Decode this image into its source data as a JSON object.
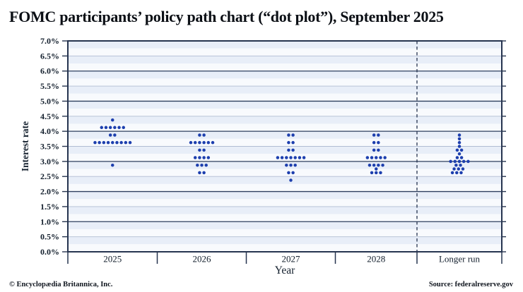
{
  "title": "FOMC participants’ policy path chart (“dot plot”), September 2025",
  "footer": {
    "left": "© Encyclopædia Britannica, Inc.",
    "right": "Source: federalreserve.gov"
  },
  "colors": {
    "dot": "#1d3fae",
    "frame": "#26344f",
    "grid_major": "#2e3f5e",
    "grid_minor": "#b0bcd2",
    "band_blue": "#e8eef8",
    "band_white": "#f8fafd",
    "text": "#14202e"
  },
  "chart_data": {
    "type": "scatter",
    "title": "FOMC participants’ policy path chart (“dot plot”), September 2025",
    "xlabel": "Year",
    "ylabel": "Interest rate",
    "unit": "percent",
    "ylim": [
      0.0,
      7.0
    ],
    "ytick_step": 0.5,
    "ytick_labels": [
      "7.0%",
      "6.5%",
      "6.0%",
      "5.5%",
      "5.0%",
      "4.5%",
      "4.0%",
      "3.5%",
      "3.0%",
      "2.5%",
      "2.0%",
      "1.5%",
      "1.0%",
      "0.5%",
      "0.0%"
    ],
    "categories": [
      "2025",
      "2026",
      "2027",
      "2028",
      "Longer run"
    ],
    "grid": true,
    "legend": "none",
    "longer_run_divider": "dashed vertical line before Longer run column",
    "columns": [
      {
        "label": "2025",
        "dots": [
          {
            "rate": 4.375,
            "count": 1
          },
          {
            "rate": 4.125,
            "count": 6
          },
          {
            "rate": 3.875,
            "count": 2
          },
          {
            "rate": 3.625,
            "count": 9
          },
          {
            "rate": 2.875,
            "count": 1
          }
        ]
      },
      {
        "label": "2026",
        "dots": [
          {
            "rate": 3.875,
            "count": 2
          },
          {
            "rate": 3.625,
            "count": 6
          },
          {
            "rate": 3.375,
            "count": 2
          },
          {
            "rate": 3.125,
            "count": 4
          },
          {
            "rate": 2.875,
            "count": 3
          },
          {
            "rate": 2.625,
            "count": 2
          }
        ]
      },
      {
        "label": "2027",
        "dots": [
          {
            "rate": 3.875,
            "count": 2
          },
          {
            "rate": 3.625,
            "count": 2
          },
          {
            "rate": 3.375,
            "count": 2
          },
          {
            "rate": 3.125,
            "count": 7
          },
          {
            "rate": 2.875,
            "count": 3
          },
          {
            "rate": 2.625,
            "count": 2
          },
          {
            "rate": 2.375,
            "count": 1
          }
        ]
      },
      {
        "label": "2028",
        "dots": [
          {
            "rate": 3.875,
            "count": 2
          },
          {
            "rate": 3.625,
            "count": 2
          },
          {
            "rate": 3.375,
            "count": 2
          },
          {
            "rate": 3.125,
            "count": 5
          },
          {
            "rate": 2.875,
            "count": 4
          },
          {
            "rate": 2.75,
            "count": 1
          },
          {
            "rate": 2.625,
            "count": 3
          }
        ]
      },
      {
        "label": "Longer run",
        "swarm": true,
        "dots": [
          {
            "rate": 3.875,
            "offsets": [
              0
            ]
          },
          {
            "rate": 3.75,
            "offsets": [
              0
            ]
          },
          {
            "rate": 3.625,
            "offsets": [
              0
            ]
          },
          {
            "rate": 3.5,
            "offsets": [
              0
            ]
          },
          {
            "rate": 3.375,
            "offsets": [
              -0.5,
              0.5
            ]
          },
          {
            "rate": 3.25,
            "offsets": [
              0
            ]
          },
          {
            "rate": 3.125,
            "offsets": [
              -0.5,
              0.5
            ]
          },
          {
            "rate": 3.0,
            "offsets": [
              -2,
              -1,
              0,
              1,
              2
            ]
          },
          {
            "rate": 2.875,
            "offsets": [
              -0.75,
              0.25
            ]
          },
          {
            "rate": 2.75,
            "offsets": [
              -1.2,
              -0.2,
              0.8
            ]
          },
          {
            "rate": 2.625,
            "offsets": [
              -1.6,
              -0.6,
              0.4
            ]
          }
        ]
      }
    ]
  }
}
